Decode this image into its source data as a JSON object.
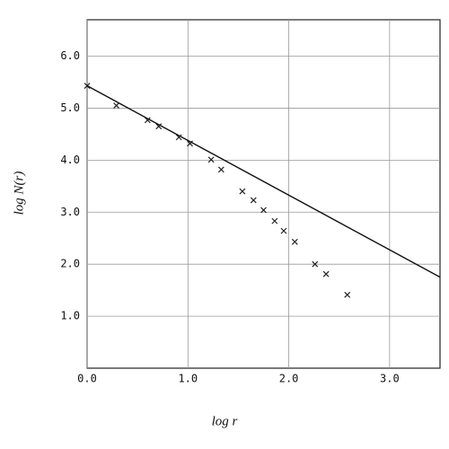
{
  "chart_data": {
    "type": "scatter",
    "xlabel": "log r",
    "ylabel": "log N(r)",
    "xlim": [
      0,
      3.5
    ],
    "ylim": [
      0,
      6.7
    ],
    "xticks": [
      {
        "value": 0,
        "label": "0.0"
      },
      {
        "value": 1,
        "label": "1.0"
      },
      {
        "value": 2,
        "label": "2.0"
      },
      {
        "value": 3,
        "label": "3.0"
      }
    ],
    "yticks": [
      {
        "value": 1,
        "label": "1.0"
      },
      {
        "value": 2,
        "label": "2.0"
      },
      {
        "value": 3,
        "label": "3.0"
      },
      {
        "value": 4,
        "label": "4.0"
      },
      {
        "value": 5,
        "label": "5.0"
      },
      {
        "value": 6,
        "label": "6.0"
      }
    ],
    "grid": true,
    "series": [
      {
        "type": "scatter",
        "marker": "x",
        "color": "#222222",
        "x": [
          0,
          0.29,
          0.6,
          0.71,
          0.91,
          1.02,
          1.23,
          1.33,
          1.54,
          1.65,
          1.75,
          1.86,
          1.95,
          2.06,
          2.26,
          2.37,
          2.58
        ],
        "values": [
          5.43,
          5.05,
          4.77,
          4.65,
          4.44,
          4.32,
          4.01,
          3.82,
          3.4,
          3.23,
          3.04,
          2.83,
          2.64,
          2.43,
          2.0,
          1.81,
          1.41
        ]
      },
      {
        "type": "line",
        "color": "#111111",
        "x": [
          0,
          3.5
        ],
        "values": [
          5.43,
          1.75
        ]
      }
    ]
  }
}
